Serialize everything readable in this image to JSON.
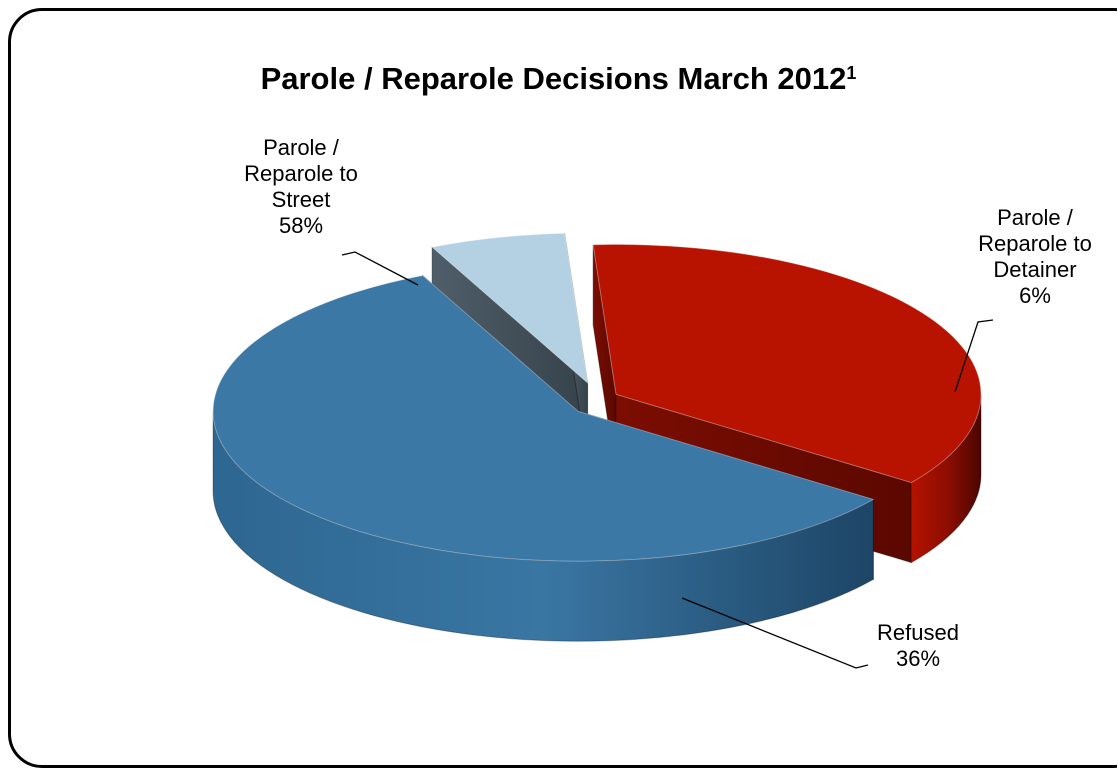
{
  "chart_data": {
    "type": "pie",
    "title": "Parole / Reparole Decisions March 2012",
    "title_superscript": "1",
    "categories": [
      "Parole / Reparole to Street",
      "Parole / Reparole to Detainer",
      "Refused"
    ],
    "values": [
      58,
      6,
      36
    ],
    "label_values": [
      "58%",
      "6%",
      "36%"
    ],
    "label_lines": [
      [
        "Parole /",
        "Reparole to",
        "Street"
      ],
      [
        "Parole /",
        "Reparole to",
        "Detainer"
      ],
      [
        "Refused"
      ]
    ],
    "colors": [
      "#3b78a6",
      "#b3d1e3",
      "#b81300"
    ],
    "style": "3d-exploded",
    "legend": "none"
  }
}
